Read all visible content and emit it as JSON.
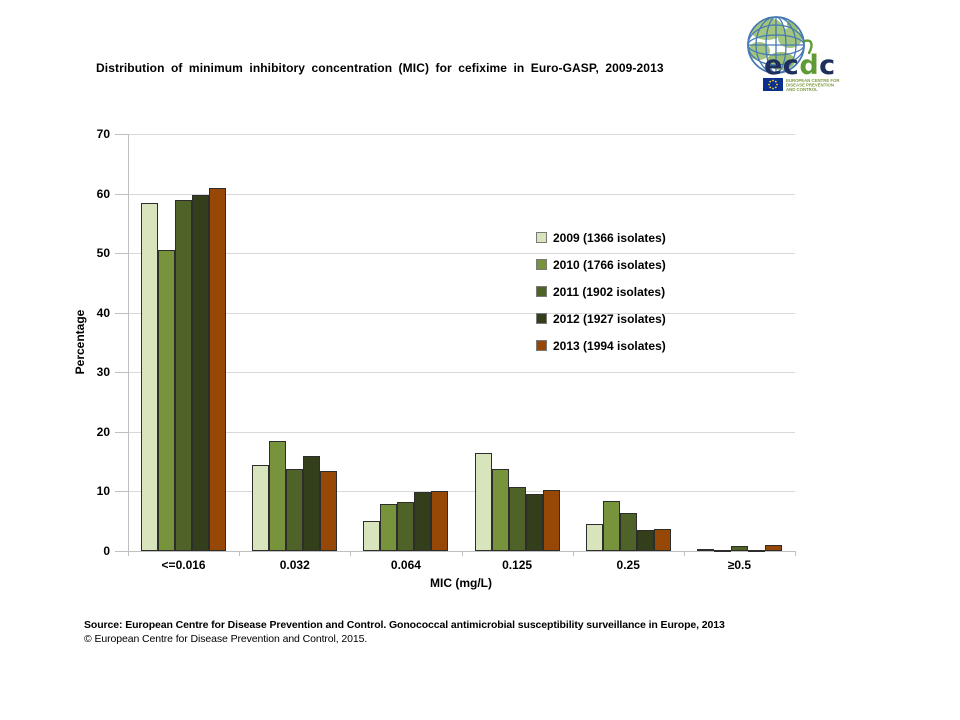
{
  "title": "Distribution of minimum inhibitory concentration (MIC) for cefixime in Euro-GASP, 2009-2013",
  "logo": {
    "brand_parts": [
      "ec",
      "d",
      "c"
    ],
    "tagline_lines": [
      "EUROPEAN CENTRE FOR",
      "DISEASE PREVENTION",
      "AND CONTROL"
    ],
    "colors": {
      "navy": "#1e2f5e",
      "green": "#5f9a33",
      "globe_blue": "#4579b2",
      "land_green": "#a3c57e",
      "flag_blue": "#0b2f8c",
      "star_yellow": "#ffd617",
      "tagline_green": "#7e9c3f"
    }
  },
  "chart_data": {
    "type": "bar",
    "title": "",
    "categories": [
      "<=0.016",
      "0.032",
      "0.064",
      "0.125",
      "0.25",
      "≥0.5"
    ],
    "series": [
      {
        "name": "2009 (1366 isolates)",
        "color": "#D7E4BC",
        "values": [
          58.4,
          14.4,
          5.0,
          16.5,
          4.5,
          0.3
        ]
      },
      {
        "name": "2010 (1766 isolates)",
        "color": "#77933C",
        "values": [
          50.5,
          18.4,
          7.9,
          13.8,
          8.4,
          0.1
        ]
      },
      {
        "name": "2011 (1902 isolates)",
        "color": "#4F6228",
        "values": [
          58.9,
          13.7,
          8.2,
          10.7,
          6.4,
          0.9
        ]
      },
      {
        "name": "2012 (1927 isolates)",
        "color": "#333F1A",
        "values": [
          59.8,
          16.0,
          9.9,
          9.6,
          3.5,
          0.2
        ]
      },
      {
        "name": "2013 (1994 isolates)",
        "color": "#974706",
        "values": [
          60.9,
          13.4,
          10.1,
          10.2,
          3.7,
          1.0
        ]
      }
    ],
    "xlabel": "MIC (mg/L)",
    "ylabel": "Percentage",
    "ylim": [
      0,
      70
    ],
    "ytick_step": 10,
    "grid": true,
    "legend_position": "inside-right"
  },
  "footer": {
    "line1": "Source: European Centre for Disease Prevention and Control.  Gonococcal antimicrobial susceptibility surveillance in Europe, 2013",
    "line2": "© European Centre for Disease Prevention and Control, 2015."
  }
}
